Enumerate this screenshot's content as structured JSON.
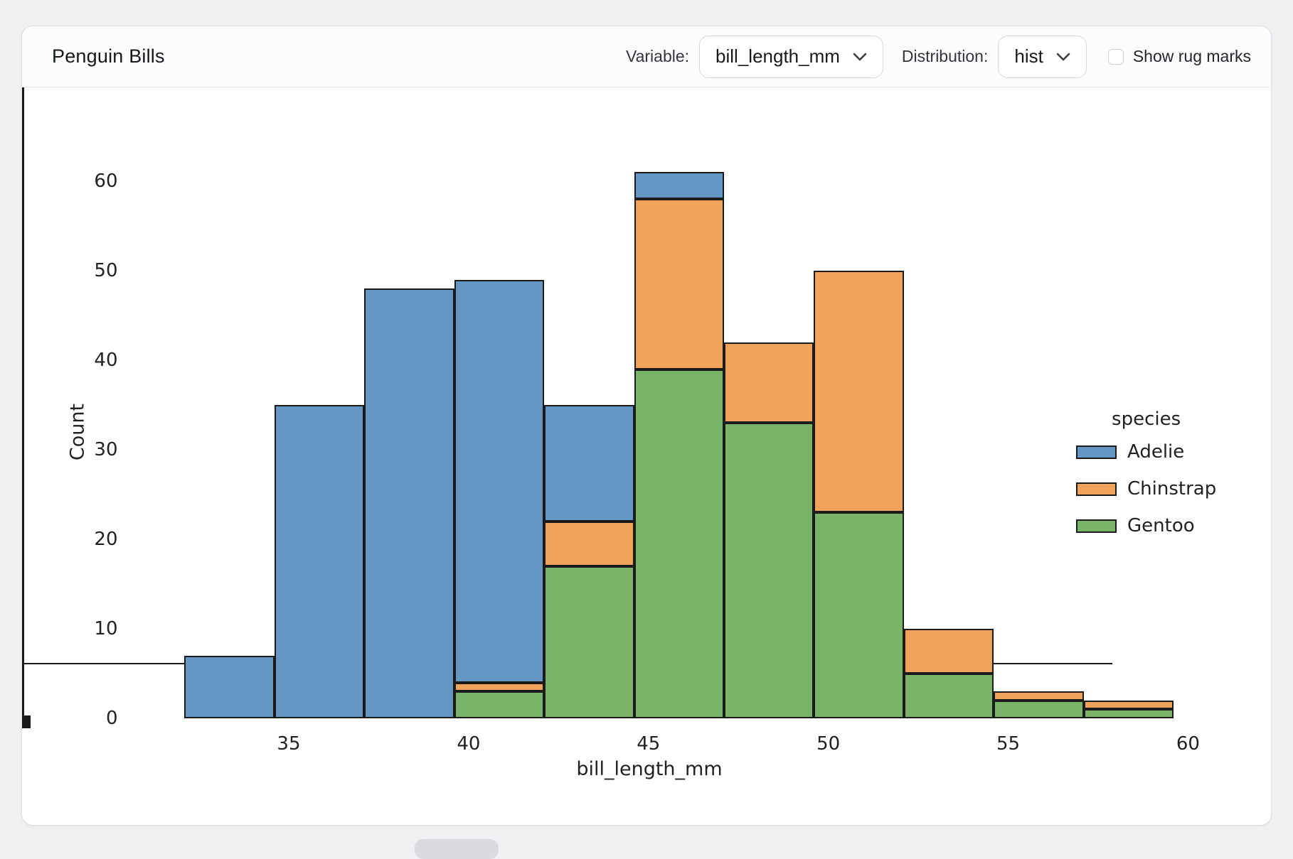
{
  "header": {
    "title": "Penguin Bills",
    "variable_label": "Variable:",
    "variable_value": "bill_length_mm",
    "distribution_label": "Distribution:",
    "distribution_value": "hist",
    "rug_label": "Show rug marks",
    "rug_checked": false
  },
  "icons": {
    "variable_chevron": "chevron-down-icon",
    "distribution_chevron": "chevron-down-icon"
  },
  "chart_data": {
    "type": "bar",
    "subtype": "stacked-histogram",
    "title": "",
    "xlabel": "bill_length_mm",
    "ylabel": "Count",
    "legend_title": "species",
    "legend_position": "center right",
    "grid": false,
    "bin_edges": [
      32.1,
      34.6,
      37.1,
      39.6,
      42.1,
      44.6,
      47.1,
      49.6,
      52.1,
      54.6,
      57.1,
      59.6
    ],
    "series": [
      {
        "name": "Adelie",
        "color": "#6497c4",
        "values": [
          7,
          35,
          48,
          45,
          13,
          3,
          0,
          0,
          0,
          0,
          0
        ]
      },
      {
        "name": "Chinstrap",
        "color": "#efa35b",
        "values": [
          0,
          0,
          0,
          1,
          5,
          19,
          9,
          27,
          5,
          1,
          1
        ]
      },
      {
        "name": "Gentoo",
        "color": "#79b469",
        "values": [
          0,
          0,
          0,
          3,
          17,
          39,
          33,
          23,
          5,
          2,
          1
        ]
      }
    ],
    "stack_order_bottom_to_top": [
      "Gentoo",
      "Chinstrap",
      "Adelie"
    ],
    "legend_order": [
      "Adelie",
      "Chinstrap",
      "Gentoo"
    ],
    "bar_totals": [
      7,
      35,
      48,
      49,
      35,
      61,
      42,
      50,
      10,
      3,
      2
    ],
    "xticks": [
      35,
      40,
      45,
      50,
      55,
      60
    ],
    "yticks": [
      0,
      10,
      20,
      30,
      40,
      50,
      60
    ],
    "xlim": [
      30.73,
      60.98
    ],
    "ylim": [
      0,
      64.05
    ],
    "edge_color": "#1b1b1b"
  }
}
